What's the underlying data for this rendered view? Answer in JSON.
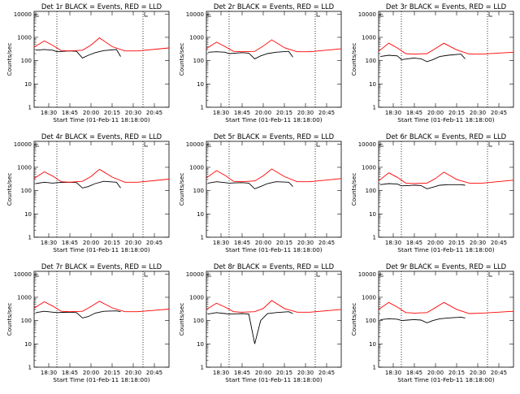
{
  "chart_data": [
    {
      "type": "line",
      "title": "Det 1r BLACK = Events, RED = LLD",
      "xlabel": "Start Time (01-Feb-11 18:18:00)",
      "ylabel": "Counts/sec",
      "yscale": "log",
      "ylim": [
        1,
        13000
      ],
      "xlim": [
        "18:18",
        "20:57"
      ],
      "x_tick_labels": [
        "18:30",
        "18:45",
        "20:00",
        "20:15",
        "20:30",
        "20:45"
      ],
      "y_tick_labels": [
        "1",
        "10",
        "100",
        "1000",
        "10000"
      ],
      "legend": "in title",
      "series": [
        {
          "color": "#000000",
          "x": [
            "18:20",
            "18:30",
            "18:40",
            "18:45",
            "18:52",
            "19:00",
            "19:08",
            "19:15",
            "19:22",
            "19:30",
            "19:40",
            "19:55",
            "20:00"
          ],
          "y": [
            280,
            300,
            280,
            240,
            250,
            260,
            250,
            130,
            170,
            220,
            270,
            300,
            150
          ]
        },
        {
          "color": "#ff0000",
          "x": [
            "18:18",
            "18:30",
            "18:40",
            "18:50",
            "19:00",
            "19:15",
            "19:25",
            "19:35",
            "19:50",
            "20:05",
            "20:20",
            "20:57"
          ],
          "y": [
            380,
            700,
            450,
            270,
            260,
            280,
            460,
            950,
            400,
            260,
            260,
            350
          ]
        }
      ]
    },
    {
      "type": "line",
      "title": "Det 2r BLACK = Events, RED = LLD",
      "xlabel": "Start Time (01-Feb-11 18:18:00)",
      "ylabel": "Counts/sec",
      "yscale": "log",
      "ylim": [
        1,
        13000
      ],
      "xlim": [
        "18:18",
        "20:57"
      ],
      "x_tick_labels": [
        "18:30",
        "18:45",
        "20:00",
        "20:15",
        "20:30",
        "20:45"
      ],
      "y_tick_labels": [
        "1",
        "10",
        "100",
        "1000",
        "10000"
      ],
      "legend": "in title",
      "series": [
        {
          "color": "#000000",
          "x": [
            "18:20",
            "18:30",
            "18:40",
            "18:45",
            "18:52",
            "19:00",
            "19:08",
            "19:15",
            "19:22",
            "19:30",
            "19:40",
            "19:55",
            "20:00"
          ],
          "y": [
            230,
            240,
            230,
            200,
            210,
            220,
            210,
            120,
            160,
            200,
            230,
            250,
            140
          ]
        },
        {
          "color": "#ff0000",
          "x": [
            "18:18",
            "18:30",
            "18:40",
            "18:50",
            "19:00",
            "19:15",
            "19:25",
            "19:35",
            "19:50",
            "20:05",
            "20:20",
            "20:57"
          ],
          "y": [
            330,
            620,
            400,
            250,
            240,
            250,
            420,
            780,
            360,
            240,
            240,
            320
          ]
        }
      ]
    },
    {
      "type": "line",
      "title": "Det 3r BLACK = Events, RED = LLD",
      "xlabel": "Start Time (01-Feb-11 18:18:00)",
      "ylabel": "Counts/sec",
      "yscale": "log",
      "ylim": [
        1,
        13000
      ],
      "xlim": [
        "18:18",
        "20:57"
      ],
      "x_tick_labels": [
        "18:30",
        "18:45",
        "20:00",
        "20:15",
        "20:30",
        "20:45"
      ],
      "y_tick_labels": [
        "1",
        "10",
        "100",
        "1000",
        "10000"
      ],
      "legend": "in title",
      "series": [
        {
          "color": "#000000",
          "x": [
            "18:20",
            "18:30",
            "18:40",
            "18:45",
            "18:52",
            "19:00",
            "19:08",
            "19:15",
            "19:22",
            "19:30",
            "19:40",
            "19:55",
            "20:00"
          ],
          "y": [
            150,
            170,
            160,
            110,
            120,
            130,
            120,
            90,
            110,
            150,
            170,
            190,
            120
          ]
        },
        {
          "color": "#ff0000",
          "x": [
            "18:18",
            "18:30",
            "18:40",
            "18:50",
            "19:00",
            "19:15",
            "19:25",
            "19:35",
            "19:50",
            "20:05",
            "20:20",
            "20:57"
          ],
          "y": [
            250,
            560,
            350,
            200,
            190,
            200,
            330,
            560,
            290,
            190,
            190,
            230
          ]
        }
      ]
    },
    {
      "type": "line",
      "title": "Det 4r BLACK = Events, RED = LLD",
      "xlabel": "Start Time (01-Feb-11 18:18:00)",
      "ylabel": "Counts/sec",
      "yscale": "log",
      "ylim": [
        1,
        13000
      ],
      "xlim": [
        "18:18",
        "20:57"
      ],
      "x_tick_labels": [
        "18:30",
        "18:45",
        "20:00",
        "20:15",
        "20:30",
        "20:45"
      ],
      "y_tick_labels": [
        "1",
        "10",
        "100",
        "1000",
        "10000"
      ],
      "legend": "in title",
      "series": [
        {
          "color": "#000000",
          "x": [
            "18:20",
            "18:30",
            "18:40",
            "18:45",
            "18:52",
            "19:00",
            "19:08",
            "19:15",
            "19:22",
            "19:30",
            "19:40",
            "19:55",
            "20:00"
          ],
          "y": [
            200,
            230,
            210,
            220,
            225,
            230,
            220,
            130,
            150,
            200,
            250,
            230,
            130
          ]
        },
        {
          "color": "#ff0000",
          "x": [
            "18:18",
            "18:30",
            "18:40",
            "18:50",
            "19:00",
            "19:15",
            "19:25",
            "19:35",
            "19:50",
            "20:05",
            "20:20",
            "20:57"
          ],
          "y": [
            330,
            640,
            420,
            240,
            230,
            250,
            400,
            820,
            380,
            230,
            230,
            310
          ]
        }
      ]
    },
    {
      "type": "line",
      "title": "Det 5r BLACK = Events, RED = LLD",
      "xlabel": "Start Time (01-Feb-11 18:18:00)",
      "ylabel": "Counts/sec",
      "yscale": "log",
      "ylim": [
        1,
        13000
      ],
      "xlim": [
        "18:18",
        "20:57"
      ],
      "x_tick_labels": [
        "18:30",
        "18:45",
        "20:00",
        "20:15",
        "20:30",
        "20:45"
      ],
      "y_tick_labels": [
        "1",
        "10",
        "100",
        "1000",
        "10000"
      ],
      "legend": "in title",
      "series": [
        {
          "color": "#000000",
          "x": [
            "18:20",
            "18:30",
            "18:40",
            "18:45",
            "18:52",
            "19:00",
            "19:08",
            "19:15",
            "19:22",
            "19:30",
            "19:40",
            "19:55",
            "20:00"
          ],
          "y": [
            210,
            240,
            220,
            210,
            215,
            220,
            210,
            120,
            150,
            200,
            240,
            230,
            150
          ]
        },
        {
          "color": "#ff0000",
          "x": [
            "18:18",
            "18:30",
            "18:40",
            "18:50",
            "19:00",
            "19:15",
            "19:25",
            "19:35",
            "19:50",
            "20:05",
            "20:20",
            "20:57"
          ],
          "y": [
            350,
            720,
            450,
            250,
            240,
            260,
            430,
            850,
            400,
            240,
            240,
            330
          ]
        }
      ]
    },
    {
      "type": "line",
      "title": "Det 6r BLACK = Events, RED = LLD",
      "xlabel": "Start Time (01-Feb-11 18:18:00)",
      "ylabel": "Counts/sec",
      "yscale": "log",
      "ylim": [
        1,
        13000
      ],
      "xlim": [
        "18:18",
        "20:57"
      ],
      "x_tick_labels": [
        "18:30",
        "18:45",
        "20:00",
        "20:15",
        "20:30",
        "20:45"
      ],
      "y_tick_labels": [
        "1",
        "10",
        "100",
        "1000",
        "10000"
      ],
      "legend": "in title",
      "series": [
        {
          "color": "#000000",
          "x": [
            "18:20",
            "18:30",
            "18:40",
            "18:45",
            "18:52",
            "19:00",
            "19:08",
            "19:15",
            "19:22",
            "19:30",
            "19:40",
            "19:55",
            "20:00"
          ],
          "y": [
            180,
            200,
            190,
            160,
            165,
            170,
            165,
            120,
            140,
            170,
            180,
            180,
            170
          ]
        },
        {
          "color": "#ff0000",
          "x": [
            "18:18",
            "18:30",
            "18:40",
            "18:50",
            "19:00",
            "19:15",
            "19:25",
            "19:35",
            "19:50",
            "20:05",
            "20:20",
            "20:57"
          ],
          "y": [
            260,
            580,
            370,
            210,
            200,
            210,
            330,
            620,
            300,
            210,
            210,
            280
          ]
        }
      ]
    },
    {
      "type": "line",
      "title": "Det 7r BLACK = Events, RED = LLD",
      "xlabel": "Start Time (01-Feb-11 18:18:00)",
      "ylabel": "Counts/sec",
      "yscale": "log",
      "ylim": [
        1,
        13000
      ],
      "xlim": [
        "18:18",
        "20:57"
      ],
      "x_tick_labels": [
        "18:30",
        "18:45",
        "20:00",
        "20:15",
        "20:30",
        "20:45"
      ],
      "y_tick_labels": [
        "1",
        "10",
        "100",
        "1000",
        "10000"
      ],
      "legend": "in title",
      "series": [
        {
          "color": "#000000",
          "x": [
            "18:20",
            "18:30",
            "18:40",
            "18:45",
            "18:52",
            "19:00",
            "19:08",
            "19:15",
            "19:22",
            "19:30",
            "19:40",
            "19:55",
            "20:00"
          ],
          "y": [
            220,
            250,
            230,
            220,
            225,
            230,
            220,
            130,
            150,
            210,
            250,
            260,
            240
          ]
        },
        {
          "color": "#ff0000",
          "x": [
            "18:18",
            "18:30",
            "18:40",
            "18:50",
            "19:00",
            "19:15",
            "19:25",
            "19:35",
            "19:50",
            "20:05",
            "20:20",
            "20:57"
          ],
          "y": [
            340,
            640,
            420,
            250,
            240,
            250,
            400,
            680,
            350,
            240,
            240,
            310
          ]
        }
      ]
    },
    {
      "type": "line",
      "title": "Det 8r BLACK = Events, RED = LLD",
      "xlabel": "Start Time (01-Feb-11 18:18:00)",
      "ylabel": "Counts/sec",
      "yscale": "log",
      "ylim": [
        1,
        13000
      ],
      "xlim": [
        "18:18",
        "20:57"
      ],
      "x_tick_labels": [
        "18:30",
        "18:45",
        "20:00",
        "20:15",
        "20:30",
        "20:45"
      ],
      "y_tick_labels": [
        "1",
        "10",
        "100",
        "1000",
        "10000"
      ],
      "legend": "in title",
      "series": [
        {
          "color": "#000000",
          "x": [
            "18:20",
            "18:30",
            "18:40",
            "18:45",
            "18:52",
            "19:00",
            "19:08",
            "19:15",
            "19:22",
            "19:30",
            "19:40",
            "19:55",
            "20:00"
          ],
          "y": [
            190,
            220,
            200,
            190,
            195,
            200,
            190,
            10,
            100,
            200,
            220,
            240,
            200
          ]
        },
        {
          "color": "#ff0000",
          "x": [
            "18:18",
            "18:30",
            "18:40",
            "18:50",
            "19:00",
            "19:15",
            "19:25",
            "19:35",
            "19:50",
            "20:05",
            "20:20",
            "20:57"
          ],
          "y": [
            300,
            560,
            380,
            240,
            230,
            240,
            330,
            720,
            330,
            230,
            230,
            300
          ]
        }
      ]
    },
    {
      "type": "line",
      "title": "Det 9r BLACK = Events, RED = LLD",
      "xlabel": "Start Time (01-Feb-11 18:18:00)",
      "ylabel": "Counts/sec",
      "yscale": "log",
      "ylim": [
        1,
        13000
      ],
      "xlim": [
        "18:18",
        "20:57"
      ],
      "x_tick_labels": [
        "18:30",
        "18:45",
        "20:00",
        "20:15",
        "20:30",
        "20:45"
      ],
      "y_tick_labels": [
        "1",
        "10",
        "100",
        "1000",
        "10000"
      ],
      "legend": "in title",
      "series": [
        {
          "color": "#000000",
          "x": [
            "18:20",
            "18:30",
            "18:40",
            "18:45",
            "18:52",
            "19:00",
            "19:08",
            "19:15",
            "19:22",
            "19:30",
            "19:40",
            "19:55",
            "20:00"
          ],
          "y": [
            110,
            120,
            115,
            100,
            105,
            110,
            105,
            80,
            100,
            120,
            130,
            140,
            130
          ]
        },
        {
          "color": "#ff0000",
          "x": [
            "18:18",
            "18:30",
            "18:40",
            "18:50",
            "19:00",
            "19:15",
            "19:25",
            "19:35",
            "19:50",
            "20:05",
            "20:20",
            "20:57"
          ],
          "y": [
            300,
            600,
            380,
            220,
            210,
            220,
            360,
            600,
            300,
            200,
            210,
            250
          ]
        }
      ]
    }
  ]
}
